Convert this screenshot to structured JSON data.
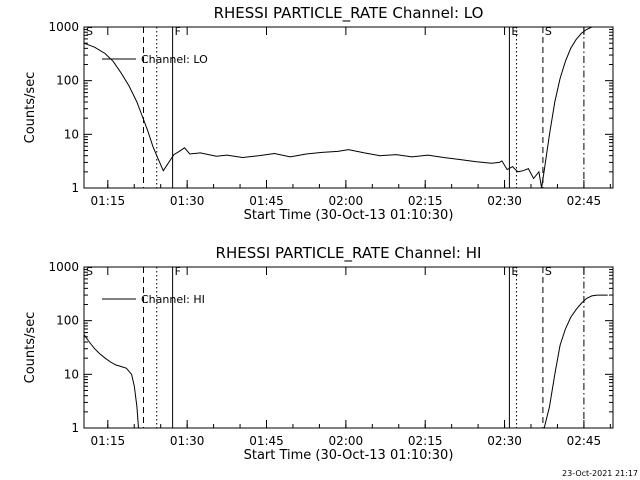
{
  "footer": {
    "timestamp": "23-Oct-2021 21:17"
  },
  "chart_data": [
    {
      "type": "line",
      "title": "RHESSI PARTICLE_RATE Channel: LO",
      "xlabel": "Start Time (30-Oct-13 01:10:30)",
      "ylabel": "Counts/sec",
      "yscale": "log",
      "ylim": [
        1,
        1000
      ],
      "xlim_minutes_since_start": [
        0,
        100
      ],
      "x_ticks": [
        "01:15",
        "01:30",
        "01:45",
        "02:00",
        "02:15",
        "02:30",
        "02:45"
      ],
      "y_ticks": [
        "1",
        "10",
        "100",
        "1000"
      ],
      "legend": {
        "label": "Channel: LO",
        "position": "top-left"
      },
      "markers": [
        {
          "label": "S",
          "time": "01:10:30",
          "style": "solid"
        },
        {
          "label": "",
          "time": "01:21:45",
          "style": "dashed"
        },
        {
          "label": "",
          "time": "01:24:15",
          "style": "dotted"
        },
        {
          "label": "F",
          "time": "01:27:15",
          "style": "solid"
        },
        {
          "label": "E",
          "time": "02:30:55",
          "style": "solid"
        },
        {
          "label": "",
          "time": "02:32:15",
          "style": "dotted"
        },
        {
          "label": "S",
          "time": "02:37:15",
          "style": "dashed"
        },
        {
          "label": "",
          "time": "02:45:00",
          "style": "dashdot"
        }
      ],
      "series": [
        {
          "x": [
            0,
            2,
            4,
            5.5,
            7,
            8.5,
            10,
            11,
            12,
            13,
            14,
            15,
            17,
            18,
            19,
            20,
            22,
            25,
            27,
            30,
            33,
            36,
            39,
            42,
            45,
            48,
            50,
            53,
            56,
            59,
            62,
            65,
            68,
            71,
            74,
            77,
            78.5,
            79,
            80,
            81,
            82,
            83,
            84,
            85,
            86,
            86.5,
            87,
            88,
            89,
            90,
            91,
            92,
            93,
            94,
            95,
            96,
            97,
            98,
            99
          ],
          "y": [
            500,
            420,
            320,
            230,
            140,
            80,
            40,
            22,
            12,
            6,
            3.5,
            2.1,
            4.2,
            4.8,
            5.6,
            4.3,
            4.5,
            3.9,
            4.1,
            3.7,
            4.0,
            4.4,
            3.8,
            4.3,
            4.6,
            4.8,
            5.2,
            4.5,
            4.0,
            4.2,
            3.8,
            4.1,
            3.7,
            3.4,
            3.1,
            2.9,
            3.0,
            3.2,
            2.2,
            2.5,
            2.0,
            2.1,
            2.3,
            1.5,
            2.0,
            1.0,
            2.1,
            10,
            40,
            110,
            230,
            400,
            580,
            760,
            900,
            1000,
            1000,
            1000,
            1000
          ]
        }
      ]
    },
    {
      "type": "line",
      "title": "RHESSI PARTICLE_RATE Channel: HI",
      "xlabel": "Start Time (30-Oct-13 01:10:30)",
      "ylabel": "Counts/sec",
      "yscale": "log",
      "ylim": [
        1,
        1000
      ],
      "xlim_minutes_since_start": [
        0,
        100
      ],
      "x_ticks": [
        "01:15",
        "01:30",
        "01:45",
        "02:00",
        "02:15",
        "02:30",
        "02:45"
      ],
      "y_ticks": [
        "1",
        "10",
        "100",
        "1000"
      ],
      "legend": {
        "label": "Channel: HI",
        "position": "top-left"
      },
      "markers": [
        {
          "label": "S",
          "time": "01:10:30",
          "style": "solid"
        },
        {
          "label": "",
          "time": "01:21:45",
          "style": "dashed"
        },
        {
          "label": "",
          "time": "01:24:15",
          "style": "dotted"
        },
        {
          "label": "F",
          "time": "01:27:15",
          "style": "solid"
        },
        {
          "label": "E",
          "time": "02:30:55",
          "style": "solid"
        },
        {
          "label": "",
          "time": "02:32:15",
          "style": "dotted"
        },
        {
          "label": "S",
          "time": "02:37:15",
          "style": "dashed"
        },
        {
          "label": "",
          "time": "02:45:00",
          "style": "dashdot"
        }
      ],
      "series": [
        {
          "x": [
            0,
            1,
            2,
            3,
            4,
            5,
            6,
            7,
            8,
            9,
            9.5,
            10,
            10.3
          ],
          "y": [
            55,
            40,
            30,
            24,
            20,
            17,
            15,
            14,
            13,
            10,
            6,
            2.5,
            1
          ]
        },
        {
          "x": [
            87,
            88,
            89,
            90,
            91,
            92,
            93,
            94,
            95,
            96,
            97,
            98,
            99
          ],
          "y": [
            1,
            2.5,
            10,
            35,
            70,
            115,
            160,
            210,
            260,
            290,
            300,
            300,
            300
          ]
        }
      ]
    }
  ]
}
